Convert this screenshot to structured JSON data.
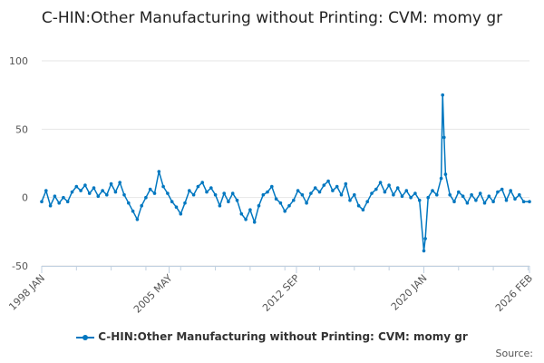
{
  "chart_data": {
    "type": "line",
    "title": "C-HIN:Other Manufacturing without Printing: CVM: momy gr",
    "xlabel": "",
    "ylabel": "",
    "ylim": [
      -50,
      100
    ],
    "yticks": [
      -50,
      0,
      50,
      100
    ],
    "xlim": [
      "1998-01",
      "2026-02"
    ],
    "xtick_labels": [
      "1998 JAN",
      "2005 MAY",
      "2012 SEP",
      "2020 JAN",
      "2026 FEB"
    ],
    "grid": true,
    "legend": "bottom-center",
    "series_color": "#0077c0",
    "series": [
      {
        "name": "C-HIN:Other Manufacturing without Printing: CVM: momy gr",
        "points": [
          [
            "1998-01",
            -3
          ],
          [
            "1998-04",
            5
          ],
          [
            "1998-07",
            -6
          ],
          [
            "1998-10",
            1
          ],
          [
            "1999-01",
            -4
          ],
          [
            "1999-04",
            0
          ],
          [
            "1999-07",
            -3
          ],
          [
            "1999-10",
            4
          ],
          [
            "2000-01",
            8
          ],
          [
            "2000-04",
            5
          ],
          [
            "2000-07",
            9
          ],
          [
            "2000-10",
            3
          ],
          [
            "2001-01",
            7
          ],
          [
            "2001-04",
            1
          ],
          [
            "2001-07",
            5
          ],
          [
            "2001-10",
            2
          ],
          [
            "2002-01",
            10
          ],
          [
            "2002-04",
            4
          ],
          [
            "2002-07",
            11
          ],
          [
            "2002-10",
            2
          ],
          [
            "2003-01",
            -4
          ],
          [
            "2003-04",
            -10
          ],
          [
            "2003-07",
            -16
          ],
          [
            "2003-10",
            -6
          ],
          [
            "2004-01",
            0
          ],
          [
            "2004-04",
            6
          ],
          [
            "2004-07",
            3
          ],
          [
            "2004-10",
            19
          ],
          [
            "2005-01",
            8
          ],
          [
            "2005-04",
            3
          ],
          [
            "2005-07",
            -3
          ],
          [
            "2005-10",
            -7
          ],
          [
            "2006-01",
            -12
          ],
          [
            "2006-04",
            -4
          ],
          [
            "2006-07",
            5
          ],
          [
            "2006-10",
            2
          ],
          [
            "2007-01",
            8
          ],
          [
            "2007-04",
            11
          ],
          [
            "2007-07",
            4
          ],
          [
            "2007-10",
            7
          ],
          [
            "2008-01",
            2
          ],
          [
            "2008-04",
            -6
          ],
          [
            "2008-07",
            3
          ],
          [
            "2008-10",
            -3
          ],
          [
            "2009-01",
            3
          ],
          [
            "2009-04",
            -2
          ],
          [
            "2009-07",
            -12
          ],
          [
            "2009-10",
            -16
          ],
          [
            "2010-01",
            -9
          ],
          [
            "2010-04",
            -18
          ],
          [
            "2010-07",
            -6
          ],
          [
            "2010-10",
            2
          ],
          [
            "2011-01",
            4
          ],
          [
            "2011-04",
            8
          ],
          [
            "2011-07",
            -1
          ],
          [
            "2011-10",
            -4
          ],
          [
            "2012-01",
            -10
          ],
          [
            "2012-04",
            -6
          ],
          [
            "2012-07",
            -2
          ],
          [
            "2012-10",
            5
          ],
          [
            "2013-01",
            2
          ],
          [
            "2013-04",
            -4
          ],
          [
            "2013-07",
            3
          ],
          [
            "2013-10",
            7
          ],
          [
            "2014-01",
            4
          ],
          [
            "2014-04",
            9
          ],
          [
            "2014-07",
            12
          ],
          [
            "2014-10",
            5
          ],
          [
            "2015-01",
            8
          ],
          [
            "2015-04",
            2
          ],
          [
            "2015-07",
            10
          ],
          [
            "2015-10",
            -2
          ],
          [
            "2016-01",
            2
          ],
          [
            "2016-04",
            -6
          ],
          [
            "2016-07",
            -9
          ],
          [
            "2016-10",
            -3
          ],
          [
            "2017-01",
            3
          ],
          [
            "2017-04",
            6
          ],
          [
            "2017-07",
            11
          ],
          [
            "2017-10",
            4
          ],
          [
            "2018-01",
            9
          ],
          [
            "2018-04",
            2
          ],
          [
            "2018-07",
            7
          ],
          [
            "2018-10",
            1
          ],
          [
            "2019-01",
            5
          ],
          [
            "2019-04",
            0
          ],
          [
            "2019-07",
            3
          ],
          [
            "2019-10",
            -2
          ],
          [
            "2020-01",
            -39
          ],
          [
            "2020-02",
            -30
          ],
          [
            "2020-04",
            0
          ],
          [
            "2020-07",
            5
          ],
          [
            "2020-10",
            2
          ],
          [
            "2021-01",
            14
          ],
          [
            "2021-02",
            75
          ],
          [
            "2021-03",
            44
          ],
          [
            "2021-04",
            17
          ],
          [
            "2021-07",
            2
          ],
          [
            "2021-10",
            -3
          ],
          [
            "2022-01",
            4
          ],
          [
            "2022-04",
            1
          ],
          [
            "2022-07",
            -4
          ],
          [
            "2022-10",
            2
          ],
          [
            "2023-01",
            -2
          ],
          [
            "2023-04",
            3
          ],
          [
            "2023-07",
            -4
          ],
          [
            "2023-10",
            1
          ],
          [
            "2024-01",
            -3
          ],
          [
            "2024-04",
            4
          ],
          [
            "2024-07",
            6
          ],
          [
            "2024-10",
            -2
          ],
          [
            "2025-01",
            5
          ],
          [
            "2025-04",
            -1
          ],
          [
            "2025-07",
            2
          ],
          [
            "2025-10",
            -3
          ],
          [
            "2026-02",
            -3
          ]
        ]
      }
    ],
    "source_label": "Source:"
  }
}
